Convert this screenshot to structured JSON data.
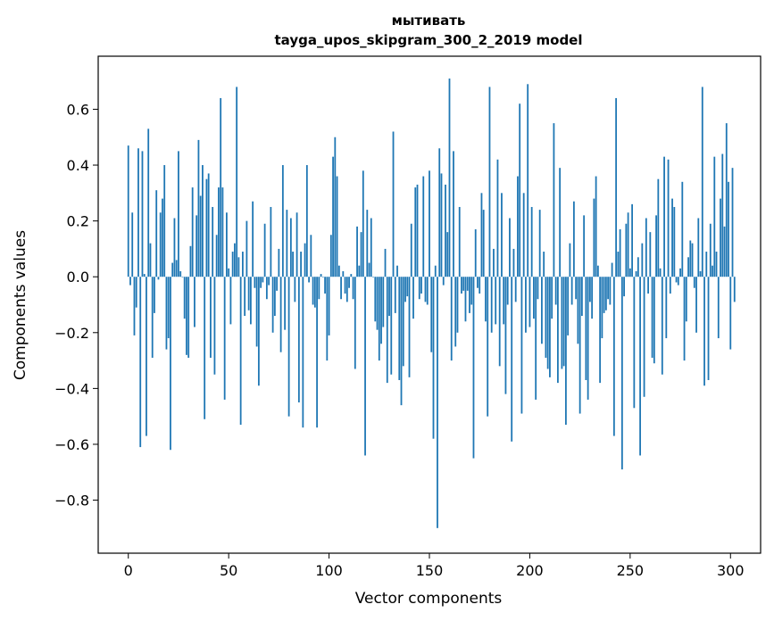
{
  "chart_data": {
    "type": "bar",
    "title": "мытивать",
    "subtitle": "tayga_upos_skipgram_300_2_2019 model",
    "xlabel": "Vector components",
    "ylabel": "Components values",
    "xlim": [
      -15,
      315
    ],
    "ylim": [
      -0.99,
      0.79
    ],
    "xticks": [
      0,
      50,
      100,
      150,
      200,
      250,
      300
    ],
    "yticks": [
      0.6,
      0.4,
      0.2,
      0.0,
      -0.2,
      -0.4,
      -0.6,
      -0.8
    ],
    "ytick_labels": [
      "0.6",
      "0.4",
      "0.2",
      "0.0",
      "−0.2",
      "−0.4",
      "−0.6",
      "−0.8"
    ],
    "bar_color": "#1f77b4",
    "grid": false,
    "values": [
      0.47,
      -0.03,
      0.23,
      -0.21,
      -0.11,
      0.46,
      -0.61,
      0.45,
      0.01,
      -0.57,
      0.53,
      0.12,
      -0.29,
      -0.13,
      0.31,
      -0.01,
      0.23,
      0.28,
      0.4,
      -0.26,
      -0.22,
      -0.62,
      0.05,
      0.21,
      0.06,
      0.45,
      0.02,
      0.0,
      -0.15,
      -0.28,
      -0.29,
      0.11,
      0.32,
      -0.18,
      0.22,
      0.49,
      0.29,
      0.4,
      -0.51,
      0.35,
      0.37,
      -0.29,
      0.25,
      -0.35,
      0.15,
      0.32,
      0.64,
      0.32,
      -0.44,
      0.23,
      0.03,
      -0.17,
      0.09,
      0.12,
      0.68,
      0.07,
      -0.53,
      0.09,
      -0.14,
      0.2,
      -0.12,
      -0.17,
      0.27,
      -0.04,
      -0.25,
      -0.39,
      -0.04,
      -0.02,
      0.19,
      -0.08,
      -0.03,
      0.25,
      -0.2,
      -0.14,
      -0.05,
      0.1,
      -0.27,
      0.4,
      -0.19,
      0.24,
      -0.5,
      0.21,
      0.09,
      -0.09,
      0.23,
      -0.45,
      0.09,
      -0.54,
      0.12,
      0.4,
      -0.02,
      0.15,
      -0.1,
      -0.11,
      -0.54,
      -0.08,
      0.01,
      0.0,
      -0.06,
      -0.3,
      -0.21,
      0.15,
      0.43,
      0.5,
      0.36,
      0.04,
      -0.08,
      0.02,
      -0.06,
      -0.09,
      -0.04,
      0.01,
      -0.08,
      -0.33,
      0.18,
      0.04,
      0.16,
      0.38,
      -0.64,
      0.24,
      0.05,
      0.21,
      0.0,
      -0.16,
      -0.19,
      -0.3,
      -0.24,
      -0.18,
      0.1,
      -0.38,
      -0.14,
      -0.35,
      0.52,
      -0.13,
      0.04,
      -0.37,
      -0.46,
      -0.32,
      -0.09,
      -0.07,
      -0.36,
      0.19,
      -0.15,
      0.32,
      0.33,
      -0.08,
      -0.06,
      0.36,
      -0.09,
      -0.1,
      0.38,
      -0.27,
      -0.58,
      0.04,
      -0.9,
      0.46,
      0.37,
      -0.03,
      0.33,
      0.16,
      0.71,
      -0.3,
      0.45,
      -0.25,
      -0.2,
      0.25,
      -0.06,
      -0.05,
      -0.16,
      -0.05,
      -0.13,
      -0.1,
      -0.65,
      0.17,
      -0.04,
      -0.06,
      0.3,
      0.24,
      -0.16,
      -0.5,
      0.68,
      -0.2,
      0.1,
      -0.17,
      0.42,
      -0.32,
      0.3,
      -0.17,
      -0.42,
      -0.1,
      0.21,
      -0.59,
      0.1,
      -0.09,
      0.36,
      0.62,
      -0.49,
      0.3,
      -0.2,
      0.69,
      -0.18,
      0.25,
      -0.15,
      -0.44,
      -0.08,
      0.24,
      -0.24,
      0.09,
      -0.29,
      -0.33,
      -0.36,
      -0.15,
      0.55,
      -0.1,
      -0.38,
      0.39,
      -0.33,
      -0.32,
      -0.53,
      -0.21,
      0.12,
      -0.1,
      0.27,
      -0.08,
      -0.24,
      -0.49,
      -0.14,
      0.22,
      -0.37,
      -0.44,
      -0.09,
      -0.15,
      0.28,
      0.36,
      0.04,
      -0.38,
      -0.22,
      -0.13,
      -0.12,
      -0.08,
      -0.1,
      0.05,
      -0.57,
      0.64,
      0.09,
      0.17,
      -0.69,
      -0.07,
      0.19,
      0.23,
      0.03,
      0.26,
      -0.47,
      0.02,
      0.07,
      -0.64,
      0.12,
      -0.43,
      0.21,
      -0.06,
      0.16,
      -0.29,
      -0.31,
      0.22,
      0.35,
      0.03,
      -0.35,
      0.43,
      -0.22,
      0.42,
      -0.06,
      0.28,
      0.25,
      -0.02,
      -0.03,
      0.03,
      0.34,
      -0.3,
      -0.16,
      0.07,
      0.13,
      0.12,
      -0.04,
      -0.2,
      0.21,
      0.02,
      0.68,
      -0.39,
      0.09,
      -0.37,
      0.19,
      0.04,
      0.43,
      0.09,
      -0.22,
      0.28,
      0.44,
      0.18,
      0.55,
      0.34,
      -0.26,
      0.39,
      -0.09
    ]
  }
}
